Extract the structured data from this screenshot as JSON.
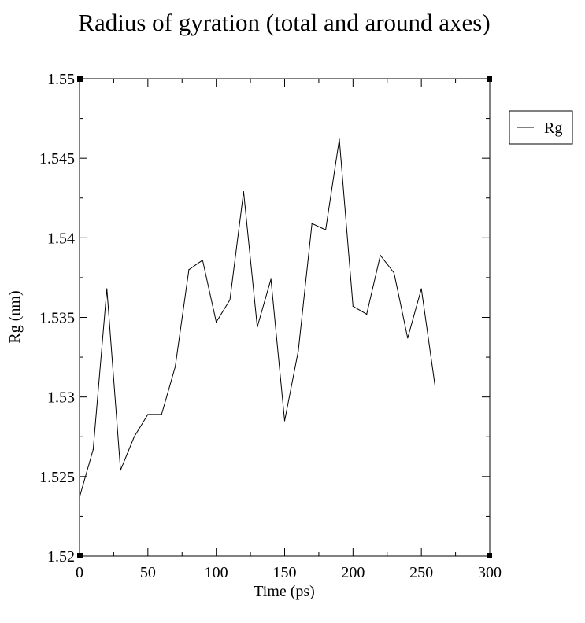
{
  "chart_data": {
    "type": "line",
    "title": "Radius of gyration (total and around axes)",
    "xlabel": "Time (ps)",
    "ylabel": "Rg (nm)",
    "xlim": [
      0,
      300
    ],
    "ylim": [
      1.52,
      1.55
    ],
    "x_ticks": [
      0,
      50,
      100,
      150,
      200,
      250,
      300
    ],
    "x_tick_labels": [
      "0",
      "50",
      "100",
      "150",
      "200",
      "250",
      "300"
    ],
    "y_ticks": [
      1.52,
      1.525,
      1.53,
      1.535,
      1.54,
      1.545,
      1.55
    ],
    "y_tick_labels": [
      "1.52",
      "1.525",
      "1.53",
      "1.535",
      "1.54",
      "1.545",
      "1.55"
    ],
    "grid": false,
    "legend_position": "top-right, outside plot",
    "series": [
      {
        "name": "Rg",
        "color": "#000000",
        "x": [
          0,
          10,
          20,
          30,
          40,
          50,
          60,
          70,
          80,
          90,
          100,
          110,
          120,
          130,
          140,
          150,
          160,
          170,
          180,
          190,
          200,
          210,
          220,
          230,
          240,
          250,
          260
        ],
        "values": [
          1.5237,
          1.5267,
          1.5368,
          1.5254,
          1.5275,
          1.5289,
          1.5289,
          1.5319,
          1.538,
          1.5386,
          1.5347,
          1.5361,
          1.5429,
          1.5344,
          1.5374,
          1.5285,
          1.5329,
          1.5409,
          1.5405,
          1.5462,
          1.5357,
          1.5352,
          1.5389,
          1.5378,
          1.5337,
          1.5368,
          1.5307
        ]
      }
    ]
  }
}
